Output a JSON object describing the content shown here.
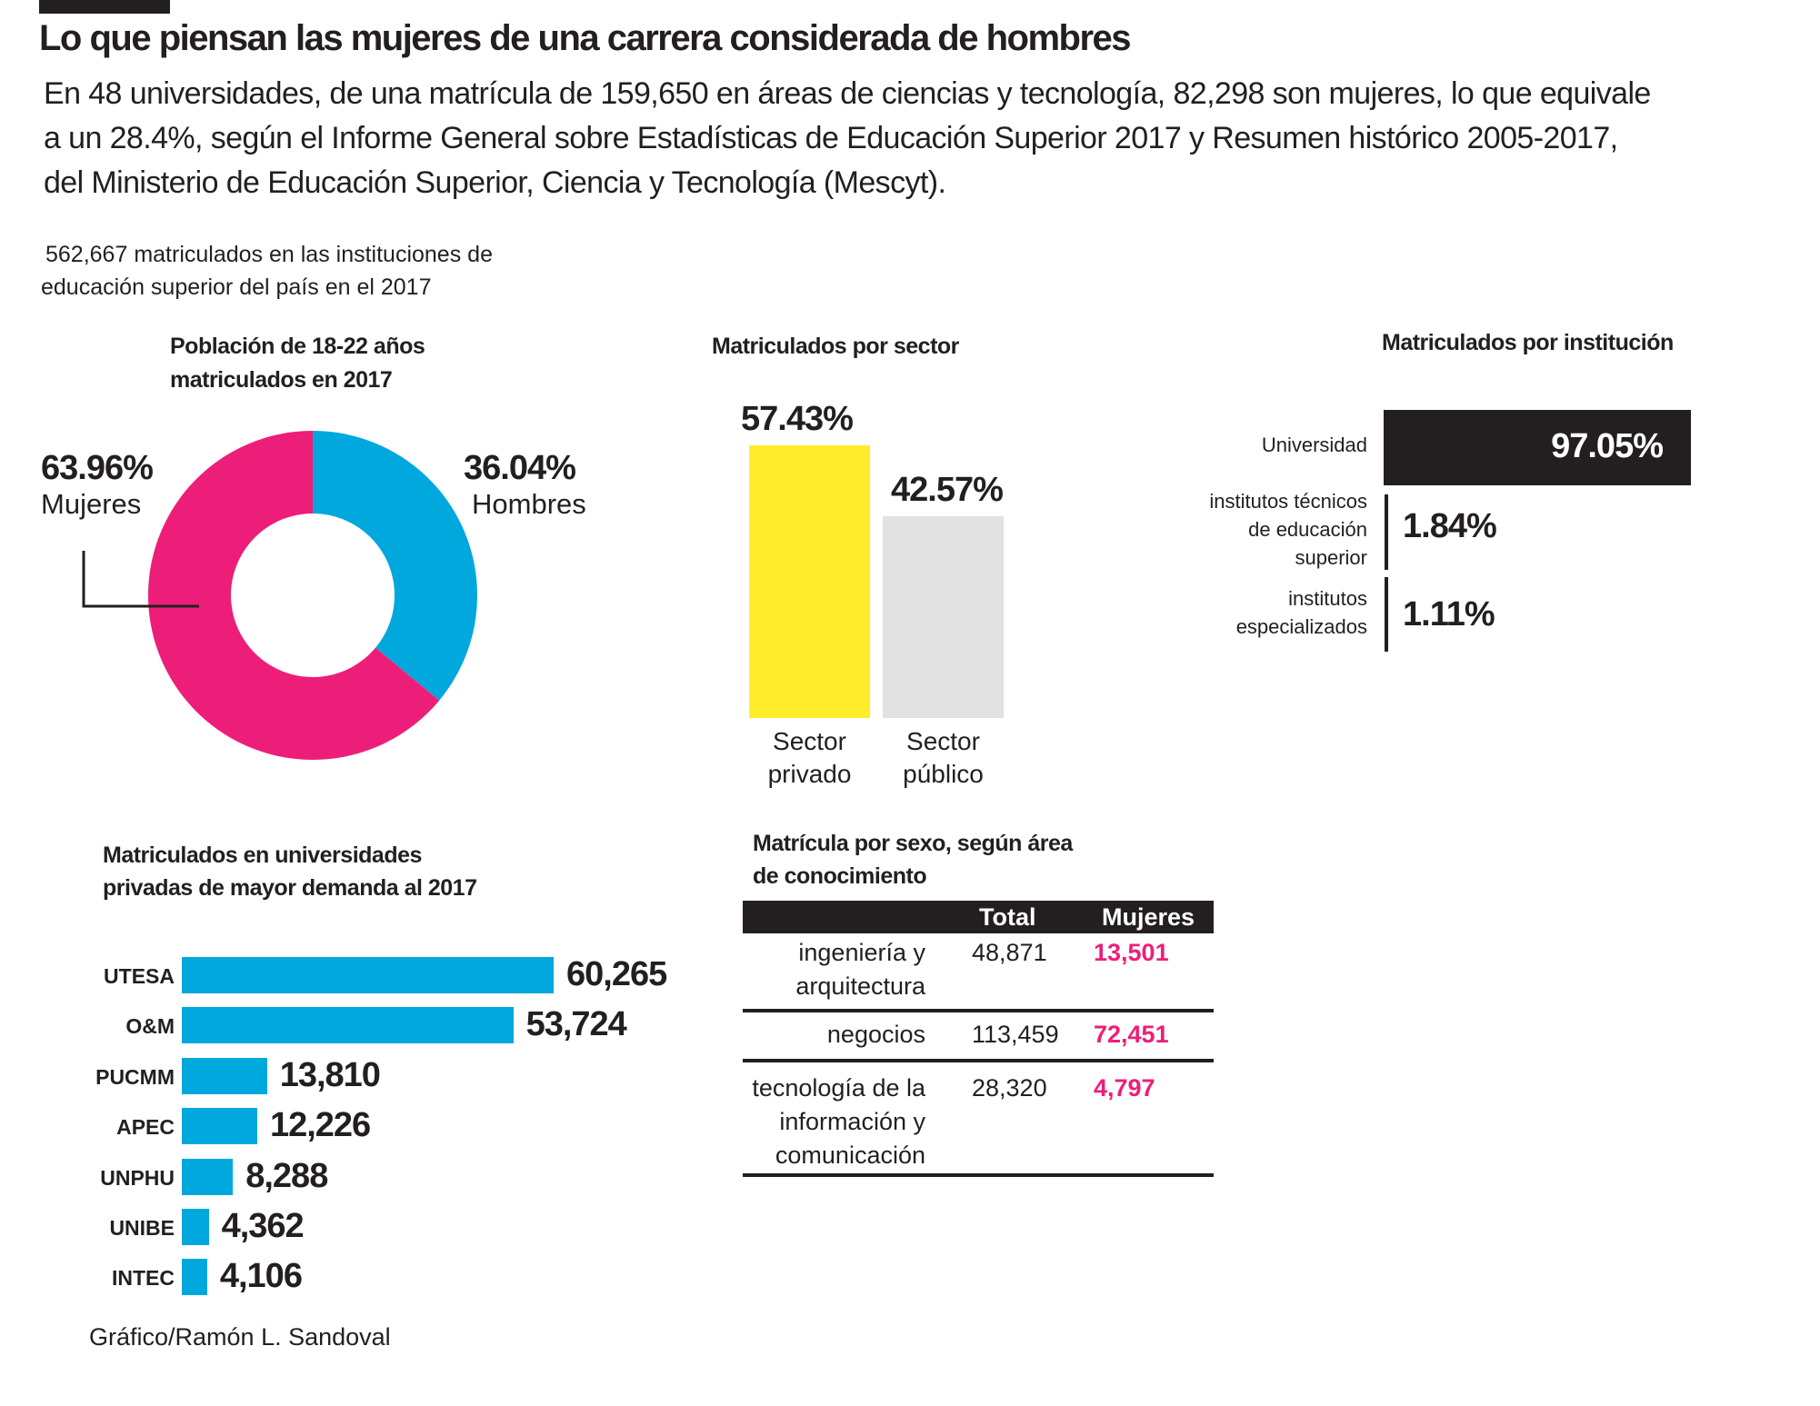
{
  "header": {
    "title": "Lo que piensan las mujeres de una carrera considerada de hombres",
    "paragraph": [
      "En 48 universidades, de una matrícula de 159,650 en áreas de ciencias y tecnología, 82,298 son mujeres, lo que equivale",
      "a un 28.4%, según el Informe General sobre Estadísticas de Educación Superior  2017 y Resumen histórico 2005-2017,",
      "del Ministerio de Educación Superior, Ciencia y Tecnología (Mescyt)."
    ],
    "note": [
      "562,667 matriculados en las instituciones de",
      "educación superior del país en el 2017"
    ]
  },
  "colors": {
    "pink": "#ed1e79",
    "blue": "#00a8de",
    "yellow": "#ffed2b",
    "gray": "#e2e2e2",
    "black": "#231f20"
  },
  "credit": "Gráfico/Ramón L. Sandoval",
  "chart_data": [
    {
      "type": "pie",
      "title": [
        "Población de 18-22 años",
        "matriculados en 2017"
      ],
      "slices": [
        {
          "label": "Mujeres",
          "value": 63.96,
          "display": "63.96%",
          "color": "#ed1e79"
        },
        {
          "label": "Hombres",
          "value": 36.04,
          "display": "36.04%",
          "color": "#00a8de"
        }
      ],
      "donut": true
    },
    {
      "type": "bar",
      "title": "Matriculados por sector",
      "categories": [
        [
          "Sector",
          "privado"
        ],
        [
          "Sector",
          "público"
        ]
      ],
      "values": [
        57.43,
        42.57
      ],
      "labels": [
        "57.43%",
        "42.57%"
      ],
      "colors": [
        "#ffed2b",
        "#e2e2e2"
      ]
    },
    {
      "type": "bar",
      "title": "Matriculados por institución",
      "orientation": "horizontal",
      "categories": [
        [
          "Universidad"
        ],
        [
          "institutos técnicos",
          "de educación",
          "superior"
        ],
        [
          "institutos",
          "especializados"
        ]
      ],
      "values": [
        97.05,
        1.84,
        1.11
      ],
      "labels": [
        "97.05%",
        "1.84%",
        "1.11%"
      ]
    },
    {
      "type": "bar",
      "orientation": "horizontal",
      "title": [
        "Matriculados en universidades",
        "privadas de mayor demanda al 2017"
      ],
      "categories": [
        "UTESA",
        "O&M",
        "PUCMM",
        "APEC",
        "UNPHU",
        "UNIBE",
        "INTEC"
      ],
      "values": [
        60265,
        53724,
        13810,
        12226,
        8288,
        4362,
        4106
      ],
      "labels": [
        "60,265",
        "53,724",
        "13,810",
        "12,226",
        "8,288",
        "4,362",
        "4,106"
      ],
      "color": "#00a8de"
    },
    {
      "type": "table",
      "title": [
        "Matrícula por sexo, según área",
        "de conocimiento"
      ],
      "columns": [
        "",
        "Total",
        "Mujeres"
      ],
      "rows": [
        {
          "area": [
            "ingeniería y",
            "arquitectura"
          ],
          "total": "48,871",
          "mujeres": "13,501"
        },
        {
          "area": [
            "negocios"
          ],
          "total": "113,459",
          "mujeres": "72,451"
        },
        {
          "area": [
            "tecnología de la",
            "información y",
            "comunicación"
          ],
          "total": "28,320",
          "mujeres": "4,797"
        }
      ]
    }
  ]
}
